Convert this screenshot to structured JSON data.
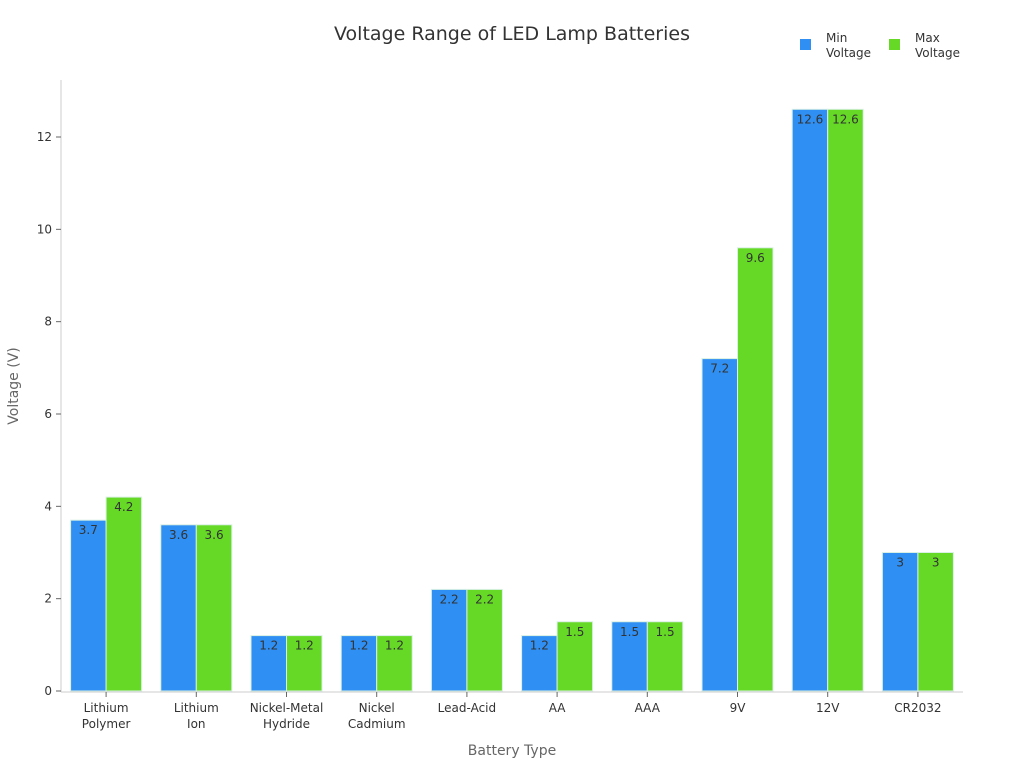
{
  "chart_data": {
    "type": "bar",
    "title": "Voltage Range of LED Lamp Batteries",
    "xlabel": "Battery Type",
    "ylabel": "Voltage (V)",
    "ylim": [
      0,
      13.2
    ],
    "yticks": [
      0,
      2,
      4,
      6,
      8,
      10,
      12
    ],
    "grid": false,
    "legend_position": "top-right",
    "categories": [
      [
        "Lithium",
        "Polymer"
      ],
      [
        "Lithium",
        "Ion"
      ],
      [
        "Nickel-Metal",
        "Hydride"
      ],
      [
        "Nickel",
        "Cadmium"
      ],
      [
        "Lead-Acid"
      ],
      [
        "AA"
      ],
      [
        "AAA"
      ],
      [
        "9V"
      ],
      [
        "12V"
      ],
      [
        "CR2032"
      ]
    ],
    "series": [
      {
        "name": [
          "Min",
          "Voltage"
        ],
        "color": "#2f8ff2",
        "values": [
          3.7,
          3.6,
          1.2,
          1.2,
          2.2,
          1.2,
          1.5,
          7.2,
          12.6,
          3
        ],
        "labels": [
          "3.7",
          "3.6",
          "1.2",
          "1.2",
          "2.2",
          "1.2",
          "1.5",
          "7.2",
          "12.6",
          "3"
        ]
      },
      {
        "name": [
          "Max",
          "Voltage"
        ],
        "color": "#66d926",
        "values": [
          4.2,
          3.6,
          1.2,
          1.2,
          2.2,
          1.5,
          1.5,
          9.6,
          12.6,
          3
        ],
        "labels": [
          "4.2",
          "3.6",
          "1.2",
          "1.2",
          "2.2",
          "1.5",
          "1.5",
          "9.6",
          "12.6",
          "3"
        ]
      }
    ]
  }
}
